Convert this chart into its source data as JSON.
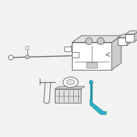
{
  "bg_color": "#f2f2f2",
  "line_color": "#666666",
  "teal_dark": "#1e8fa0",
  "teal_light": "#2db8cc",
  "white": "#ffffff",
  "gray_light": "#e0e0e0",
  "gray_mid": "#cccccc",
  "gray_dark": "#aaaaaa",
  "fig_size": [
    2.0,
    2.0
  ],
  "dpi": 100
}
